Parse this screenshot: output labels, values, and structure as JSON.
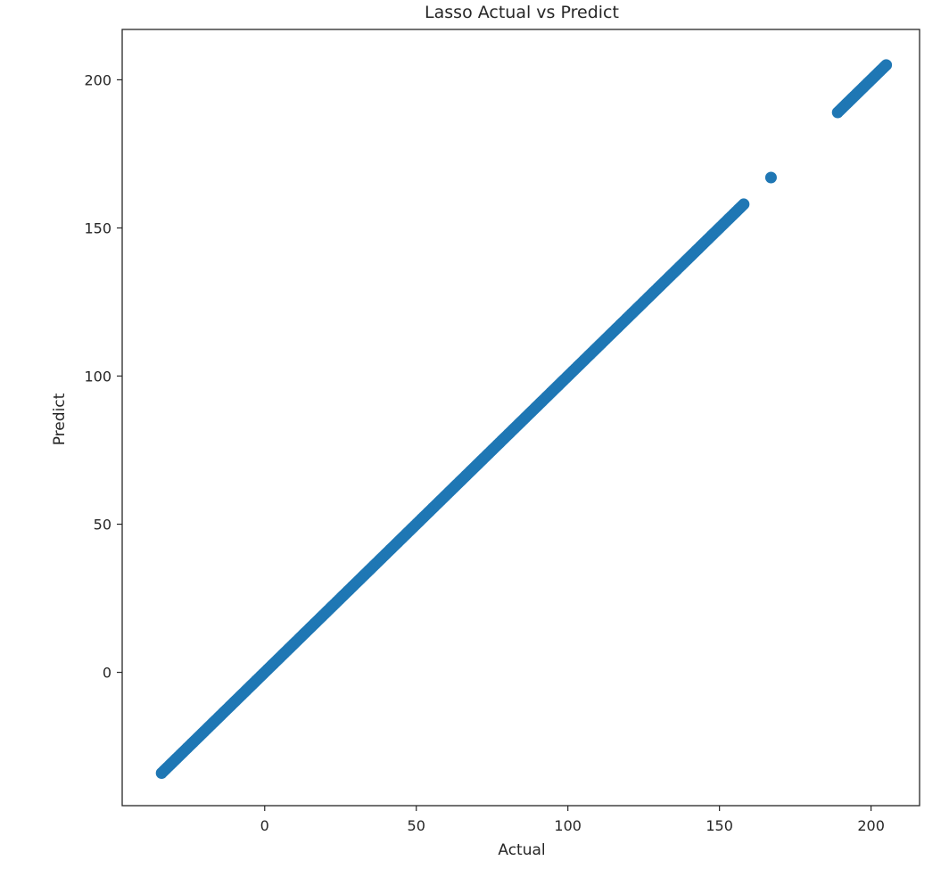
{
  "chart_data": {
    "type": "scatter",
    "title": "Lasso Actual vs Predict",
    "xlabel": "Actual",
    "ylabel": "Predict",
    "xlim": [
      -47,
      216
    ],
    "ylim": [
      -45,
      217
    ],
    "xticks": [
      0,
      50,
      100,
      150,
      200
    ],
    "yticks": [
      0,
      50,
      100,
      150,
      200
    ],
    "grid": false,
    "legend": "none",
    "marker_color": "#1f77b4",
    "series": [
      {
        "segments": [
          {
            "x_start": -34,
            "x_end": 158,
            "slope": 1,
            "intercept": 0
          },
          {
            "x_start": 189,
            "x_end": 205,
            "slope": 1,
            "intercept": 0
          }
        ],
        "points": [
          {
            "x": 167,
            "y": 167
          }
        ]
      }
    ]
  }
}
